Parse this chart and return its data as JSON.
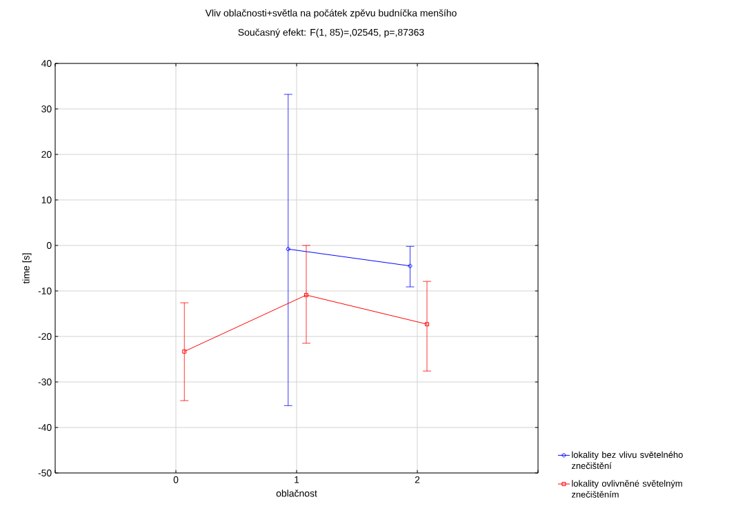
{
  "chart_data": {
    "type": "line",
    "title": "Vliv oblačnosti+světla na počátek zpěvu budníčka menšího",
    "subtitle": "Současný efekt: F(1, 85)=,02545, p=,87363",
    "xlabel": "oblačnost",
    "ylabel": "time [s]",
    "xlim": [
      -1,
      3
    ],
    "xticks": [
      {
        "value": -1,
        "label": null
      },
      0,
      1,
      2,
      {
        "value": 3,
        "label": null
      }
    ],
    "ylim": [
      -50,
      40
    ],
    "yticks": [
      -50,
      -40,
      -30,
      -20,
      -10,
      0,
      10,
      20,
      30,
      40
    ],
    "grid": true,
    "legend": "bottom right",
    "line_style": "solid",
    "series": [
      {
        "name": "lokality bez vlivu světelného znečištění",
        "color": "#0000ff",
        "marker": "circle",
        "x": [
          0.93,
          1.94
        ],
        "values": [
          -0.8,
          -4.5
        ],
        "errors": [
          [
            -35.2,
            33.2
          ],
          [
            -9.1,
            -0.2
          ]
        ]
      },
      {
        "name": "lokality ovlivněné světelným znečištěním",
        "color": "#ff0000",
        "marker": "square",
        "x": [
          0.07,
          1.08,
          2.08
        ],
        "values": [
          -23.3,
          -10.9,
          -17.3
        ],
        "errors": [
          [
            -34.1,
            -12.6
          ],
          [
            -21.5,
            0
          ],
          [
            -27.6,
            -7.9
          ]
        ]
      }
    ]
  }
}
